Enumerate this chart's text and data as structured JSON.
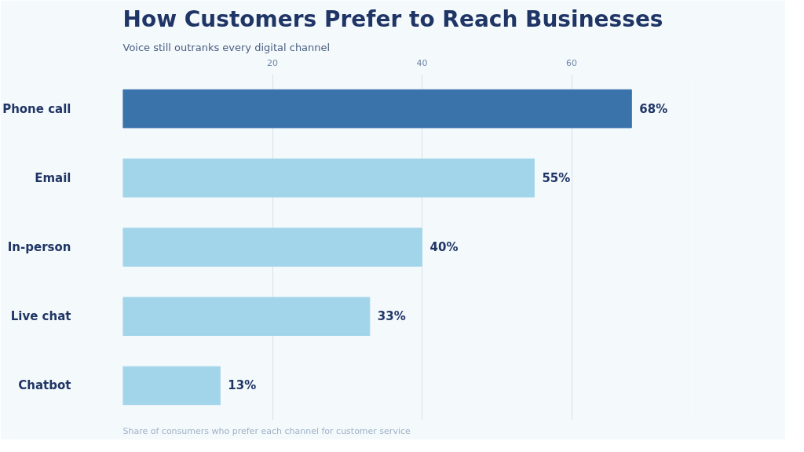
{
  "chart_data": {
    "type": "bar",
    "orientation": "horizontal",
    "title": "How Customers Prefer to Reach Businesses",
    "subtitle": "Voice still outranks every digital channel",
    "categories": [
      "Phone call",
      "Email",
      "In-person",
      "Live chat",
      "Chatbot"
    ],
    "values": [
      68,
      55,
      40,
      33,
      13
    ],
    "colors": [
      "#3a72aa",
      "#a3d5ea",
      "#a3d5ea",
      "#a3d5ea",
      "#a3d5ea"
    ],
    "value_labels": [
      "68%",
      "55%",
      "40%",
      "33%",
      "13%"
    ],
    "xlim": [
      0,
      76
    ],
    "xticks": [
      20,
      40,
      60
    ],
    "grid": "x",
    "annotations": [
      "Share of consumers who prefer each channel for customer service"
    ]
  }
}
